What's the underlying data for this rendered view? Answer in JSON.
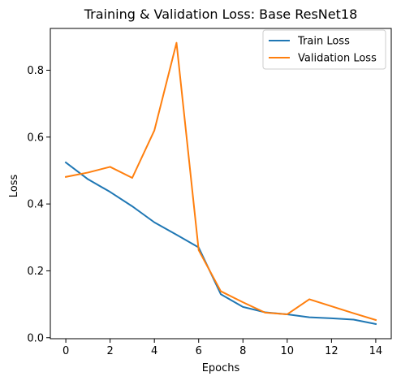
{
  "chart_data": {
    "type": "line",
    "title": "Training & Validation Loss: Base ResNet18",
    "xlabel": "Epochs",
    "ylabel": "Loss",
    "xlim": [
      -0.7,
      14.7
    ],
    "ylim": [
      -0.003,
      0.925
    ],
    "x_ticks": [
      0,
      2,
      4,
      6,
      8,
      10,
      12,
      14
    ],
    "y_ticks": [
      0.0,
      0.2,
      0.4,
      0.6,
      0.8
    ],
    "grid": false,
    "legend_position": "upper right",
    "x": [
      0,
      1,
      2,
      3,
      4,
      5,
      6,
      7,
      8,
      9,
      10,
      11,
      12,
      13,
      14
    ],
    "series": [
      {
        "name": "Train Loss",
        "color": "#1f77b4",
        "values": [
          0.524,
          0.474,
          0.436,
          0.393,
          0.345,
          0.308,
          0.27,
          0.13,
          0.092,
          0.076,
          0.07,
          0.061,
          0.058,
          0.054,
          0.041
        ]
      },
      {
        "name": "Validation Loss",
        "color": "#ff7f0e",
        "values": [
          0.481,
          0.494,
          0.511,
          0.478,
          0.62,
          0.882,
          0.262,
          0.139,
          0.106,
          0.075,
          0.07,
          0.115,
          0.094,
          0.073,
          0.053
        ]
      }
    ]
  }
}
